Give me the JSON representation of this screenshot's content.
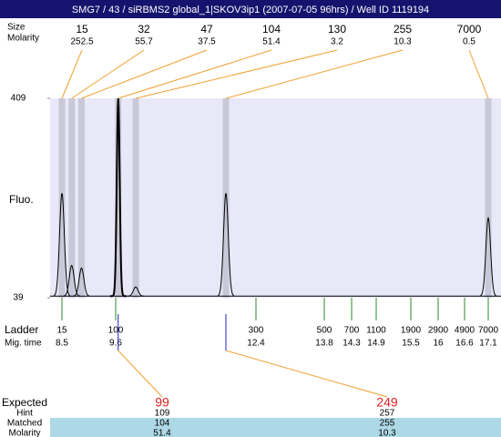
{
  "title": "SMG7 / 43 / siRBMS2 global_1|SKOV3ip1 (2007-07-05 96hrs) / Well ID 1119194",
  "peaks": {
    "size_label": "Size",
    "molarity_label": "Molarity",
    "sizes": [
      15,
      32,
      47,
      104,
      130,
      255,
      7000
    ],
    "molarity": [
      252.5,
      55.7,
      37.5,
      51.4,
      3.2,
      10.3,
      0.5
    ]
  },
  "plot": {
    "y_label": "Fluo.",
    "ylim": [
      39,
      409
    ],
    "yticks": [
      39,
      409
    ],
    "peak_times": [
      8.5,
      8.7,
      8.9,
      9.65,
      10.0,
      11.8,
      17.1
    ],
    "peak_heights": [
      233,
      99,
      94,
      409,
      59,
      233,
      187
    ],
    "baseline": 42
  },
  "ladder": {
    "label": "Ladder",
    "time_label": "Mig. time",
    "sizes": [
      15,
      100,
      300,
      500,
      700,
      1100,
      1900,
      2900,
      4900,
      7000
    ],
    "times": [
      8.5,
      9.6,
      12.4,
      13.8,
      14.3,
      14.9,
      15.5,
      16,
      16.6,
      17.1
    ]
  },
  "expected": {
    "label": "Expected",
    "hint_label": "Hint",
    "matched_label": "Matched",
    "molarity_label": "Molarity",
    "expected": [
      99,
      249
    ],
    "hint": [
      109,
      257
    ],
    "matched": [
      104,
      255
    ],
    "molarity": [
      51.4,
      10.3
    ]
  }
}
